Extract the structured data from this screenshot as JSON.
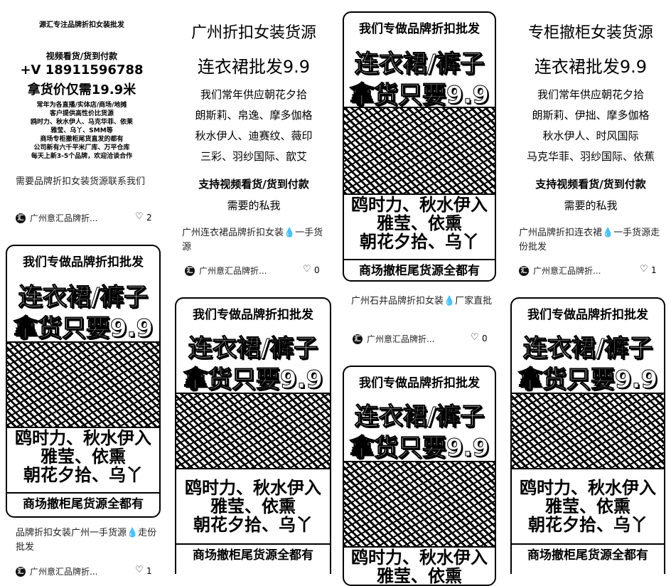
{
  "cards": [
    {
      "cover_lines": [
        "源汇专注品牌折扣女装批发",
        "视频看货/货到付款",
        "+V  18911596788",
        "拿货价仅需19.9米",
        "常年为各直播/实体店/商场/地摊",
        "客户提供高性价比货源",
        "鸥时力、秋水伊人、马克华菲、依莱",
        "雅莹、乌丫、SMM等",
        "商场专柜撤柜尾货直发的都有",
        "公司新有六千平米厂库、万平仓库",
        "每天上新3-5个品牌，欢迎洽谈合作"
      ],
      "caption": "需要品牌折扣女装货源联系我们",
      "author": "广州意汇品牌折...",
      "likes": "2"
    },
    {
      "cover_lines": [
        "广州折扣女装货源",
        "连衣裙批发9.9",
        "我们常年供应朝花夕拾",
        "朗斯莉、帛逸、摩多伽格",
        "秋水伊人、迪赛纹、薇印",
        "三彩、羽纱国际、歆艾",
        "支持视频看货/货到付款",
        "需要的私我"
      ],
      "caption": "广州连衣裙品牌折扣女装💧一手货源",
      "author": "广州意汇品牌折...",
      "likes": "0"
    },
    {
      "cover": {
        "top": "我们专做品牌折扣批发",
        "big1": "连衣裙/裤子",
        "big2": "拿货只要9.9",
        "mid1": "鸥时力、秋水伊入",
        "mid2": "雅莹、依熏",
        "mid3": "朝花夕拾、乌丫",
        "bottom": "商场撤柜尾货源全都有"
      },
      "caption": "广州石井品牌折扣女装💧厂家直批",
      "author": "广州意汇品牌折...",
      "likes": "0"
    },
    {
      "cover_lines": [
        "专柜撤柜女装货源",
        "连衣裙批发9.9",
        "我们常年供应朝花夕拾",
        "朗斯莉、伊拙、摩多伽格",
        "秋水伊人、时风国际",
        "马克华菲、羽纱国际、依蕉",
        "支持视频看货/货到付款",
        "需要的私我"
      ],
      "caption": "广州品牌折扣连衣裙💧一手货源走份批发",
      "author": "广州意汇品牌折...",
      "likes": "1"
    },
    {
      "cover": {
        "top": "我们专做品牌折扣批发",
        "big1": "连衣裙/裤子",
        "big2": "拿货只要9.9",
        "mid1": "鸥时力、秋水伊入",
        "mid2": "雅莹、依熏",
        "mid3": "朝花夕拾、乌丫",
        "bottom": "商场撤柜尾货源全都有"
      },
      "caption": "品牌折扣女装广州一手货源💧走份批发",
      "author": "广州意汇品牌折...",
      "likes": "1"
    },
    {
      "cover": {
        "top": "我们专做品牌折扣批发",
        "big1": "连衣裙/裤子",
        "big2": "拿货只要9.9",
        "mid1": "鸥时力、秋水伊入",
        "mid2": "雅莹、依熏",
        "mid3": "朝花夕拾、乌丫",
        "bottom": "商场撤柜尾货源全都有"
      }
    },
    {
      "cover": {
        "top": "我们专做品牌折扣批发",
        "big1": "连衣裙/裤子",
        "big2": "拿货只要9.9",
        "mid1": "鸥时力、秋水伊入",
        "mid2": "雅莹、依熏",
        "mid3": "朝花夕拾、乌丫",
        "bottom": ""
      }
    },
    {
      "cover": {
        "top": "我们专做品牌折扣批发",
        "big1": "连衣裙/裤子",
        "big2": "拿货只要9.9",
        "mid1": "鸥时力、秋水伊入",
        "mid2": "雅莹、依熏",
        "mid3": "朝花夕拾、乌丫",
        "bottom": "商场撤柜尾货源全都有"
      }
    }
  ],
  "icons": {
    "heart": "heart-icon",
    "avatar": "avatar-icon"
  }
}
